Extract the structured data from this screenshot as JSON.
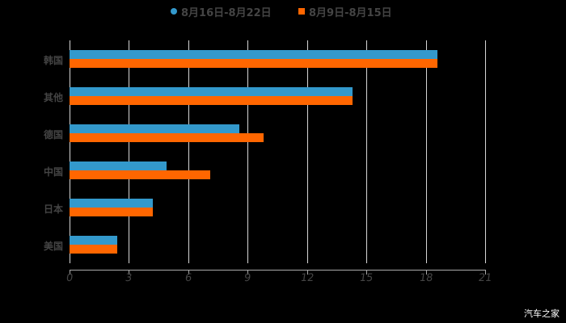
{
  "chart_data": {
    "type": "bar",
    "orientation": "horizontal",
    "title": "",
    "xlabel": "",
    "ylabel": "",
    "categories": [
      "韩国",
      "其他",
      "德国",
      "中国",
      "日本",
      "美国"
    ],
    "series": [
      {
        "name": "8月16日-8月22日",
        "color": "#3399cc",
        "values": [
          18.6,
          14.3,
          8.6,
          4.9,
          4.2,
          2.4
        ]
      },
      {
        "name": "8月9日-8月15日",
        "color": "#ff6600",
        "values": [
          18.6,
          14.3,
          9.8,
          7.1,
          4.2,
          2.4
        ]
      }
    ],
    "xlim": [
      0,
      21
    ],
    "xticks": [
      0,
      3,
      6,
      9,
      12,
      15,
      18,
      21
    ],
    "grid": true,
    "legend_position": "top"
  },
  "legend": {
    "items": [
      {
        "label": "8月16日-8月22日",
        "marker": "circle",
        "color": "#3399cc"
      },
      {
        "label": "8月9日-8月15日",
        "marker": "square",
        "color": "#ff6600"
      }
    ]
  },
  "watermark": "汽车之家"
}
